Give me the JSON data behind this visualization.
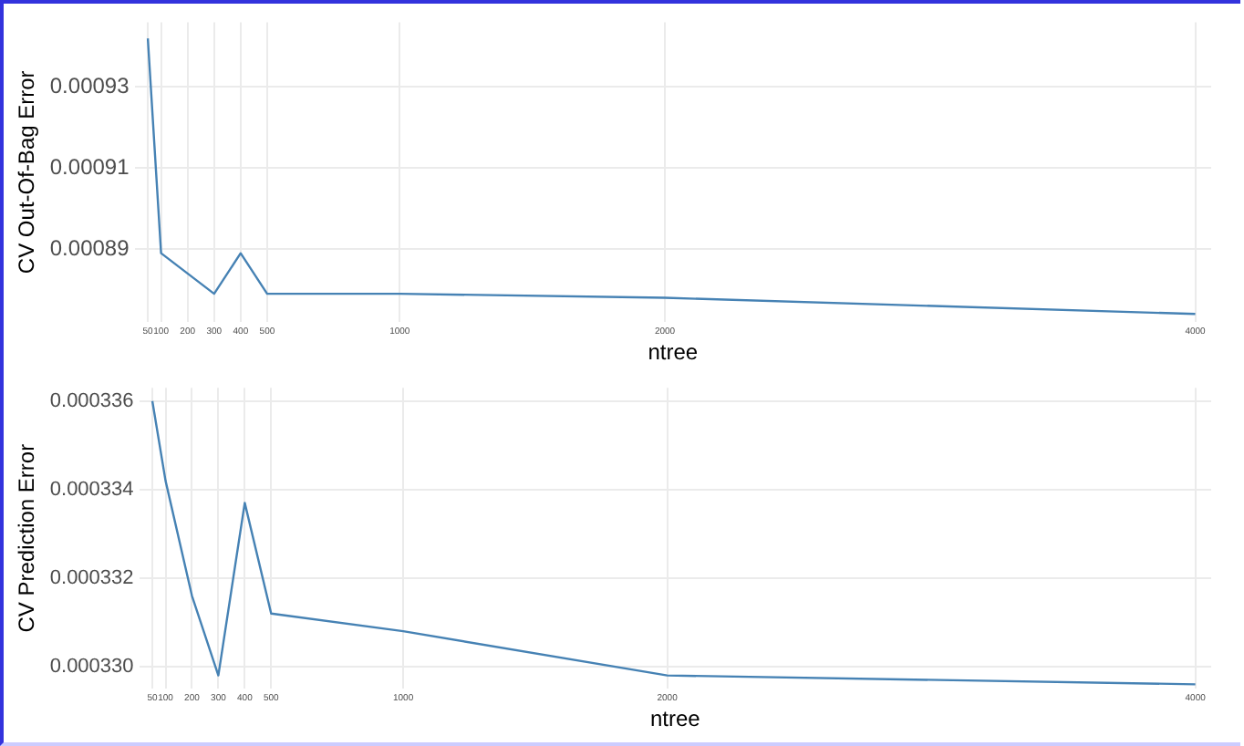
{
  "chart_data": [
    {
      "type": "line",
      "xlabel": "ntree",
      "ylabel": "CV Out-Of-Bag Error",
      "x": [
        50,
        100,
        200,
        300,
        400,
        500,
        1000,
        2000,
        4000
      ],
      "series": [
        {
          "color": "#4682b4",
          "values": [
            0.000942,
            0.000889,
            0.000884,
            0.000879,
            0.000889,
            0.000879,
            0.000879,
            0.000878,
            0.000874
          ]
        }
      ],
      "xlim": [
        0,
        4060
      ],
      "xticks": [
        50,
        100,
        200,
        300,
        400,
        500,
        1000,
        2000,
        4000
      ],
      "ylim": [
        0.000872,
        0.000946
      ],
      "yticks": [
        0.00089,
        0.00091,
        0.00093
      ],
      "grid": true,
      "marker": "none",
      "line_style": "solid"
    },
    {
      "type": "line",
      "xlabel": "ntree",
      "ylabel": "CV Prediction Error",
      "x": [
        50,
        100,
        200,
        300,
        400,
        500,
        1000,
        2000,
        4000
      ],
      "series": [
        {
          "color": "#4682b4",
          "values": [
            0.000336,
            0.0003342,
            0.0003316,
            0.0003298,
            0.0003337,
            0.0003312,
            0.0003308,
            0.0003298,
            0.0003296
          ]
        }
      ],
      "xlim": [
        0,
        4060
      ],
      "xticks": [
        50,
        100,
        200,
        300,
        400,
        500,
        1000,
        2000,
        4000
      ],
      "ylim": [
        0.0003295,
        0.0003363
      ],
      "yticks": [
        {
          "value": 0.00033,
          "label": "0.000330"
        },
        0.000332,
        0.000334,
        0.000336
      ],
      "grid": true,
      "marker": "none",
      "line_style": "solid"
    }
  ]
}
